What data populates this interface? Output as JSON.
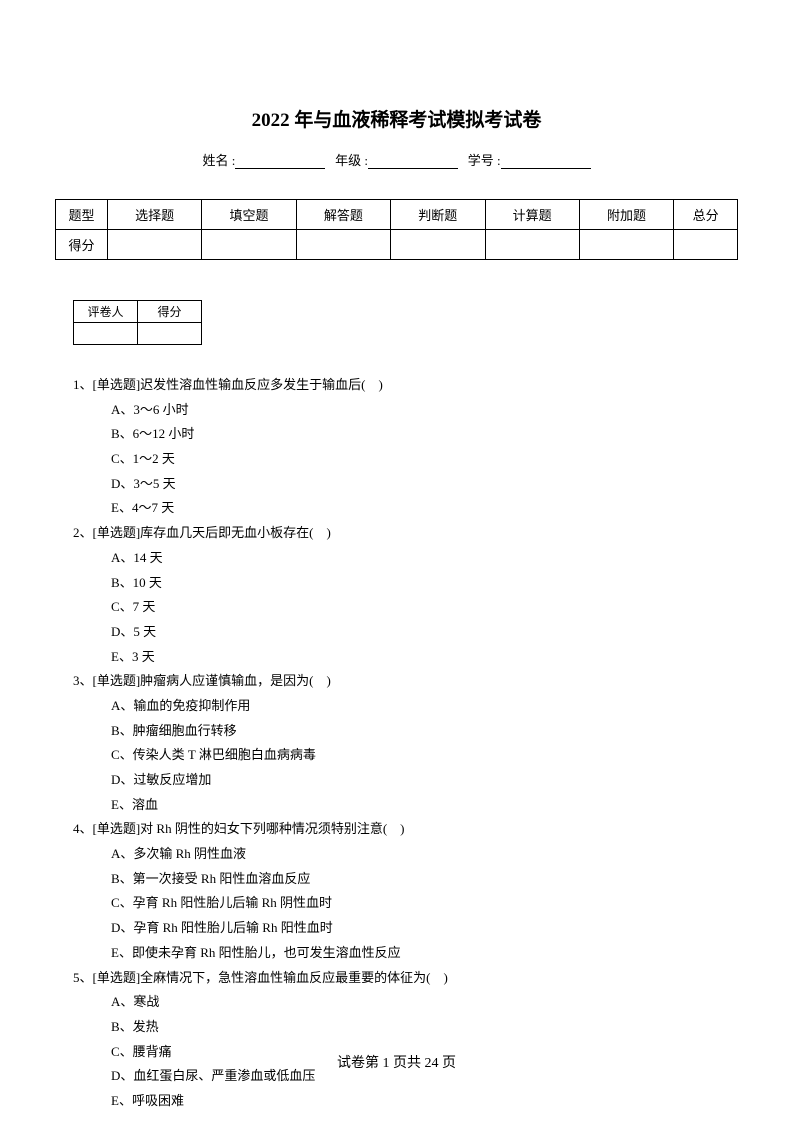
{
  "title": "2022 年与血液稀释考试模拟考试卷",
  "info": {
    "name_label": "姓名 :",
    "grade_label": "年级 :",
    "id_label": "学号 :"
  },
  "score_table": {
    "row1": [
      "题型",
      "选择题",
      "填空题",
      "解答题",
      "判断题",
      "计算题",
      "附加题",
      "总分"
    ],
    "row2_label": "得分"
  },
  "grader_table": {
    "col1": "评卷人",
    "col2": "得分"
  },
  "questions": [
    {
      "num": "1、",
      "stem": "[单选题]迟发性溶血性输血反应多发生于输血后(　)",
      "options": [
        "A、3～6 小时",
        "B、6～12 小时",
        "C、1～2 天",
        "D、3～5 天",
        "E、4～7 天"
      ]
    },
    {
      "num": "2、",
      "stem": "[单选题]库存血几天后即无血小板存在(　)",
      "options": [
        "A、14 天",
        "B、10 天",
        "C、7 天",
        "D、5 天",
        "E、3 天"
      ]
    },
    {
      "num": "3、",
      "stem": "[单选题]肿瘤病人应谨慎输血，是因为(　)",
      "options": [
        "A、输血的免疫抑制作用",
        "B、肿瘤细胞血行转移",
        "C、传染人类 T 淋巴细胞白血病病毒",
        "D、过敏反应增加",
        "E、溶血"
      ]
    },
    {
      "num": "4、",
      "stem": "[单选题]对 Rh 阴性的妇女下列哪种情况须特别注意(　)",
      "options": [
        "A、多次输 Rh 阴性血液",
        "B、第一次接受 Rh 阳性血溶血反应",
        "C、孕育 Rh 阳性胎儿后输 Rh 阴性血时",
        "D、孕育 Rh 阳性胎儿后输 Rh 阳性血时",
        "E、即使未孕育 Rh 阳性胎儿，也可发生溶血性反应"
      ]
    },
    {
      "num": "5、",
      "stem": "[单选题]全麻情况下，急性溶血性输血反应最重要的体征为(　)",
      "options": [
        "A、寒战",
        "B、发热",
        "C、腰背痛",
        "D、血红蛋白尿、严重渗血或低血压",
        "E、呼吸困难"
      ]
    }
  ],
  "footer": "试卷第 1 页共 24 页"
}
